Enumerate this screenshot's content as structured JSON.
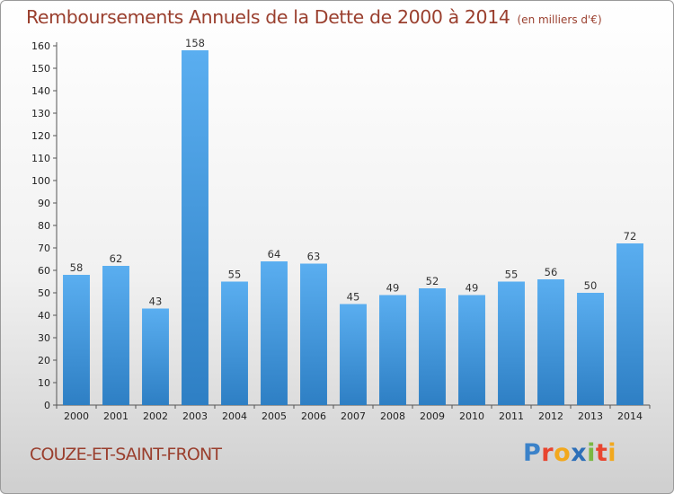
{
  "header": {
    "title": "Remboursements Annuels de la Dette de 2000 à 2014",
    "subtitle": "(en milliers d'€)"
  },
  "footer": {
    "commune": "COUZE-ET-SAINT-FRONT",
    "logo_letters": [
      "P",
      "r",
      "o",
      "x",
      "i",
      "t",
      "i"
    ],
    "logo_colors": [
      "#3b82c9",
      "#e8452f",
      "#f2a81d",
      "#2d6fb8",
      "#7bb842",
      "#e8452f",
      "#f2a81d"
    ]
  },
  "colors": {
    "bar_light": "#5aaef0",
    "bar_dark": "#2e7fc4",
    "axis": "#555555",
    "grid": "#dddddd",
    "title": "#9a3f2e"
  },
  "chart_data": {
    "type": "bar",
    "title": "Remboursements Annuels de la Dette de 2000 à 2014",
    "subtitle": "(en milliers d'€)",
    "xlabel": "",
    "ylabel": "",
    "ylim": [
      0,
      160
    ],
    "ytick_step": 10,
    "grid": false,
    "categories": [
      "2000",
      "2001",
      "2002",
      "2003",
      "2004",
      "2005",
      "2006",
      "2007",
      "2008",
      "2009",
      "2010",
      "2011",
      "2012",
      "2013",
      "2014"
    ],
    "values": [
      58,
      62,
      43,
      158,
      55,
      64,
      63,
      45,
      49,
      52,
      49,
      55,
      56,
      50,
      72
    ],
    "data_labels": [
      "58",
      "62",
      "43",
      "158",
      "55",
      "64",
      "63",
      "45",
      "49",
      "52",
      "49",
      "55",
      "56",
      "50",
      "72"
    ]
  }
}
